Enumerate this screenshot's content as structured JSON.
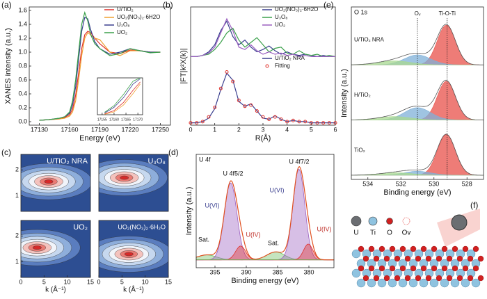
{
  "chart_data": [
    {
      "type": "line",
      "label": "(a)",
      "xlabel": "Energy (eV)",
      "ylabel": "XANES intensity (a.u.)",
      "xlim": [
        17120,
        17260
      ],
      "xticks": [
        17130,
        17160,
        17190,
        17220,
        17250
      ],
      "ylim": [
        -0.05,
        1.65
      ],
      "yticks": [
        {
          "value": 0,
          "label": "0.0"
        },
        {
          "value": 0.2,
          "label": "0.2"
        },
        {
          "value": 0.4,
          "label": "0.4"
        },
        {
          "value": 0.6,
          "label": "0.6"
        },
        {
          "value": 0.8,
          "label": "0.8"
        },
        {
          "value": 1,
          "label": "1.0"
        },
        {
          "value": 1.2,
          "label": "1.2"
        },
        {
          "value": 1.4,
          "label": "1.4"
        },
        {
          "value": 1.6,
          "label": "1.6"
        }
      ],
      "x": [
        17130,
        17140,
        17150,
        17155,
        17160,
        17163,
        17166,
        17169,
        17172,
        17175,
        17178,
        17181,
        17185,
        17190,
        17200,
        17210,
        17220,
        17230,
        17240,
        17250
      ],
      "series": [
        {
          "name": "U/TiO₂",
          "color": "#e0312b",
          "values": [
            0.02,
            0.03,
            0.04,
            0.06,
            0.1,
            0.18,
            0.38,
            0.7,
            1.05,
            1.25,
            1.3,
            1.28,
            1.2,
            1.12,
            1.0,
            0.98,
            1.03,
            1.02,
            1.0,
            1.0
          ]
        },
        {
          "name": "UO₂(NO₃)₂·6H2O",
          "color": "#f0a030",
          "values": [
            0.02,
            0.03,
            0.04,
            0.05,
            0.08,
            0.14,
            0.3,
            0.6,
            0.95,
            1.2,
            1.28,
            1.25,
            1.2,
            1.18,
            1.0,
            0.95,
            1.02,
            1.02,
            1.0,
            1.0
          ]
        },
        {
          "name": "U₃O₈",
          "color": "#3a3f8f",
          "values": [
            0.02,
            0.03,
            0.05,
            0.07,
            0.12,
            0.24,
            0.5,
            0.9,
            1.3,
            1.5,
            1.48,
            1.32,
            1.15,
            1.05,
            0.97,
            1.0,
            1.05,
            1.02,
            1.0,
            1.0
          ]
        },
        {
          "name": "UO₂",
          "color": "#3aa04a",
          "values": [
            0.02,
            0.03,
            0.05,
            0.07,
            0.14,
            0.3,
            0.6,
            1.0,
            1.4,
            1.57,
            1.45,
            1.25,
            1.12,
            1.05,
            0.95,
            0.98,
            1.05,
            1.02,
            0.99,
            1.0
          ]
        }
      ]
    },
    {
      "type": "line",
      "xlim": [
        17153,
        17172
      ],
      "xticks": [
        17155,
        17160,
        17165,
        17170
      ],
      "ylim": [
        0.2,
        1.1
      ],
      "x": [
        17156,
        17160,
        17164,
        17168,
        17171
      ],
      "series": [
        {
          "color": "#e0312b",
          "values": [
            0.22,
            0.3,
            0.5,
            0.8,
            1.0
          ]
        },
        {
          "color": "#f0a030",
          "values": [
            0.21,
            0.27,
            0.44,
            0.72,
            0.95
          ]
        },
        {
          "color": "#3a3f8f",
          "values": [
            0.24,
            0.38,
            0.62,
            0.95,
            1.08
          ]
        },
        {
          "color": "#3aa04a",
          "values": [
            0.26,
            0.42,
            0.7,
            1.02,
            1.1
          ]
        }
      ]
    },
    {
      "type": "line",
      "label": "(b)",
      "xlabel": "R(Å)",
      "ylabel": "|FT|k²X(k)|",
      "xlim": [
        0,
        6
      ],
      "xticks": [
        0,
        1,
        2,
        3,
        4,
        5,
        6
      ],
      "ylim": [
        0,
        1
      ],
      "x": [
        0,
        0.25,
        0.5,
        0.75,
        1,
        1.25,
        1.5,
        1.75,
        2,
        2.25,
        2.5,
        2.75,
        3,
        3.25,
        3.5,
        3.75,
        4,
        4.25,
        4.5,
        4.75,
        5,
        5.25,
        5.5,
        5.75,
        6
      ],
      "series": [
        {
          "name": "UO₂(NO₃)₂·6H2O",
          "color": "#3a3f8f",
          "values": [
            0.58,
            0.58,
            0.59,
            0.62,
            0.68,
            0.8,
            0.88,
            0.75,
            0.68,
            0.72,
            0.66,
            0.62,
            0.64,
            0.67,
            0.63,
            0.6,
            0.62,
            0.6,
            0.59,
            0.6,
            0.59,
            0.58,
            0.59,
            0.58,
            0.58
          ]
        },
        {
          "name": "U₃O₈",
          "color": "#3aa04a",
          "values": [
            0.58,
            0.58,
            0.59,
            0.6,
            0.64,
            0.7,
            0.78,
            0.82,
            0.72,
            0.66,
            0.7,
            0.74,
            0.68,
            0.62,
            0.65,
            0.66,
            0.61,
            0.6,
            0.63,
            0.6,
            0.59,
            0.6,
            0.58,
            0.59,
            0.58
          ]
        },
        {
          "name": "UO₂",
          "color": "#9a5fc0",
          "values": [
            0.58,
            0.58,
            0.59,
            0.61,
            0.66,
            0.78,
            0.9,
            0.8,
            0.66,
            0.64,
            0.68,
            0.63,
            0.6,
            0.62,
            0.6,
            0.61,
            0.59,
            0.6,
            0.58,
            0.59,
            0.58,
            0.58,
            0.58,
            0.58,
            0.58
          ]
        },
        {
          "name": "U/TiO₂ NRA",
          "color": "#3a3f8f",
          "values": [
            0.02,
            0.02,
            0.03,
            0.06,
            0.14,
            0.3,
            0.44,
            0.38,
            0.2,
            0.16,
            0.18,
            0.12,
            0.06,
            0.05,
            0.08,
            0.05,
            0.03,
            0.04,
            0.03,
            0.03,
            0.02,
            0.02,
            0.02,
            0.02,
            0.02
          ]
        },
        {
          "name": "Fitting",
          "color": "#e0312b",
          "style": "markers",
          "values": [
            0.02,
            0.02,
            0.03,
            0.07,
            0.15,
            0.31,
            0.45,
            0.37,
            0.21,
            0.16,
            0.17,
            0.12,
            0.07,
            0.05,
            0.07,
            0.05,
            0.03,
            0.04,
            0.03,
            0.03,
            0.02,
            0.02,
            0.02,
            0.02,
            0.02
          ]
        }
      ]
    },
    {
      "type": "contour",
      "label": "(c)",
      "xlabel": "k (Å⁻¹)",
      "xlim": [
        0,
        15
      ],
      "xticks": [
        0,
        5,
        10,
        15
      ],
      "ylim": [
        0.4,
        2.6
      ],
      "yticks": [
        1,
        2
      ],
      "maps": [
        {
          "title": "U/TiO₂ NRA",
          "peak_k": 6,
          "peak_r": 1.55
        },
        {
          "title": "U₃O₈",
          "peak_k": 5.5,
          "peak_r": 1.7
        },
        {
          "title": "UO₂",
          "peak_k": 3.5,
          "peak_r": 1.55
        },
        {
          "title": "UO₂(NO₃)₂·6H₂O",
          "peak_k": 6.5,
          "peak_r": 1.3
        }
      ]
    },
    {
      "type": "xps",
      "label": "(d)",
      "title": "U 4f",
      "xlabel": "Binding energy (eV)",
      "ylabel": "Intensity (a.u.)",
      "xlim": [
        398,
        376
      ],
      "xticks": [
        395,
        390,
        385,
        380
      ],
      "ylim": [
        0,
        1.15
      ],
      "background": 0.08,
      "peaks": [
        {
          "center": 396.3,
          "height": 0.05,
          "width": 1.5,
          "color": "#6fbf5f"
        },
        {
          "center": 392.5,
          "height": 0.78,
          "width": 1.0,
          "color": "#9a5fc0"
        },
        {
          "center": 390.9,
          "height": 0.14,
          "width": 0.8,
          "color": "#e0312b"
        },
        {
          "center": 385.3,
          "height": 0.08,
          "width": 1.4,
          "color": "#6fbf5f"
        },
        {
          "center": 381.6,
          "height": 0.92,
          "width": 0.95,
          "color": "#9a5fc0"
        },
        {
          "center": 380.1,
          "height": 0.16,
          "width": 0.75,
          "color": "#e0312b"
        }
      ],
      "annotations": [
        "U 4f5/2",
        "U 4f7/2",
        "U(VI)",
        "U(VI)",
        "U(IV)",
        "U(IV)",
        "Sat.",
        "Sat."
      ]
    },
    {
      "type": "xps-stack",
      "label": "(e)",
      "title": "O 1s",
      "xlabel": "Binding energy (eV)",
      "ylabel": "Intensity (a.u.)",
      "xlim": [
        535,
        527
      ],
      "xticks": [
        534,
        532,
        530,
        528
      ],
      "ylim": [
        0,
        1
      ],
      "markers": [
        {
          "label": "Oᵥ",
          "x": 531.0
        },
        {
          "label": "Ti-O-Ti",
          "x": 529.2
        }
      ],
      "spectra": [
        {
          "name": "U/TiO₂ NRA",
          "peaks": [
            {
              "center": 529.25,
              "height": 0.8,
              "width": 0.55,
              "color": "#e8504a"
            },
            {
              "center": 531.0,
              "height": 0.2,
              "width": 0.8,
              "color": "#7fb0d8"
            },
            {
              "center": 532.4,
              "height": 0.08,
              "width": 1.0,
              "color": "#a8d890"
            }
          ]
        },
        {
          "name": "H/TiO₂",
          "peaks": [
            {
              "center": 529.25,
              "height": 0.78,
              "width": 0.55,
              "color": "#e8504a"
            },
            {
              "center": 531.0,
              "height": 0.25,
              "width": 0.8,
              "color": "#7fb0d8"
            },
            {
              "center": 532.4,
              "height": 0.07,
              "width": 1.0,
              "color": "#a8d890"
            }
          ]
        },
        {
          "name": "TiO₂",
          "peaks": [
            {
              "center": 529.25,
              "height": 0.82,
              "width": 0.55,
              "color": "#e8504a"
            },
            {
              "center": 531.0,
              "height": 0.08,
              "width": 0.8,
              "color": "#7fb0d8"
            },
            {
              "center": 532.3,
              "height": 0.05,
              "width": 1.0,
              "color": "#a8d890"
            }
          ]
        }
      ]
    }
  ],
  "illustration": {
    "label": "(f)",
    "legend": [
      "U",
      "Ti",
      "O",
      "Ov"
    ]
  }
}
